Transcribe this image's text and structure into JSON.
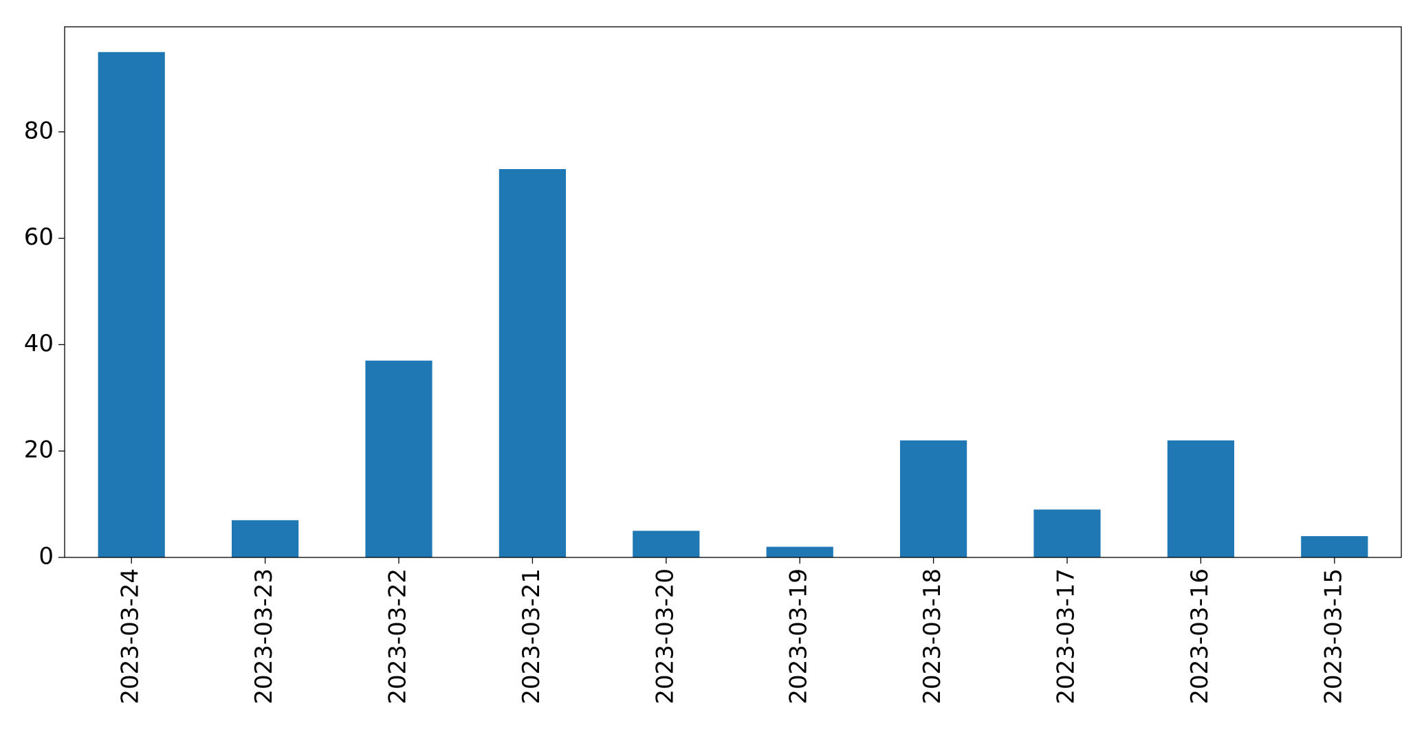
{
  "chart_data": {
    "type": "bar",
    "title": "",
    "xlabel": "",
    "ylabel": "",
    "categories": [
      "2023-03-24",
      "2023-03-23",
      "2023-03-22",
      "2023-03-21",
      "2023-03-20",
      "2023-03-19",
      "2023-03-18",
      "2023-03-17",
      "2023-03-16",
      "2023-03-15"
    ],
    "values": [
      95,
      7,
      37,
      73,
      5,
      2,
      22,
      9,
      22,
      4
    ],
    "ylim": [
      0,
      99.75
    ],
    "yticks": [
      0,
      20,
      40,
      60,
      80
    ],
    "bar_color": "#1f77b4",
    "grid": false,
    "legend": "none"
  }
}
